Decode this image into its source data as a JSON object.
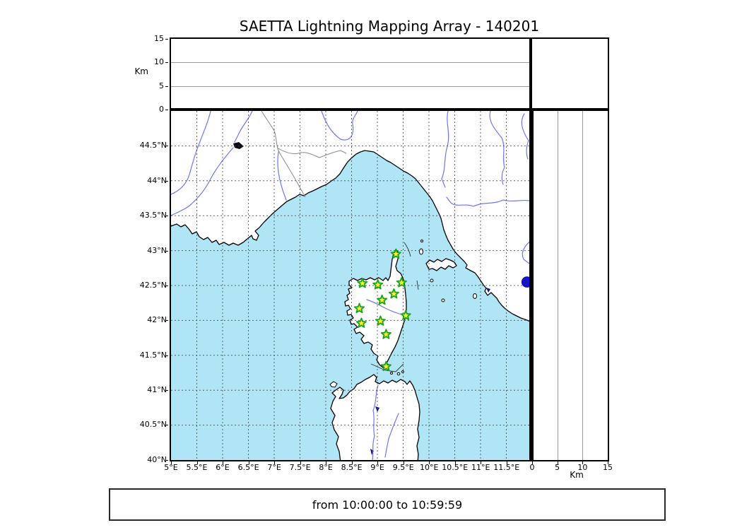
{
  "title": "SAETTA Lightning Mapping Array - 140201",
  "footer": "from 10:00:00 to 10:59:59",
  "axes": {
    "alt_top": {
      "label": "Km",
      "ticks": [
        "15",
        "10",
        "5",
        "0"
      ]
    },
    "alt_right": {
      "label": "Km",
      "ticks": [
        "0",
        "5",
        "10",
        "15"
      ]
    },
    "lat": {
      "ticks": [
        "44.5°N",
        "44°N",
        "43.5°N",
        "43°N",
        "42.5°N",
        "42°N",
        "41.5°N",
        "41°N",
        "40.5°N",
        "40°N"
      ]
    },
    "lon": {
      "ticks": [
        "5°E",
        "5.5°E",
        "6°E",
        "6.5°E",
        "7°E",
        "7.5°E",
        "8°E",
        "8.5°E",
        "9°E",
        "9.5°E",
        "10°E",
        "10.5°E",
        "11°E",
        "11.5°E"
      ]
    }
  },
  "colors": {
    "sea": "#b0e5f6",
    "land": "#ffffff",
    "station_fill": "#f6ee33",
    "station_edge": "#1ca11c",
    "event_dot": "#1515cd",
    "river": "#7277e8",
    "country_border": "#8a8a8a",
    "grid": "#4a4a4a"
  },
  "chart_data": {
    "type": "scatter",
    "title": "SAETTA Lightning Mapping Array - 140201",
    "time_range": "from 10:00:00 to 10:59:59",
    "layout": "LMA 4-panel figure: altitude-vs-longitude strip (top), plan-view map of Corsica/NW Mediterranean (main), altitude-vs-latitude strip (right), empty histogram box (top-right); grid on, dashed, 0.5 deg",
    "map_extent": {
      "lon_deg_E": [
        5,
        12
      ],
      "lat_deg_N": [
        40,
        45
      ]
    },
    "altitude_axis": {
      "label": "Km",
      "range": [
        0,
        15
      ],
      "ticks": [
        0,
        5,
        10,
        15
      ],
      "gridlines_at": [
        5,
        10
      ]
    },
    "grid_interval_deg": 0.5,
    "station_marker": "yellow star with green edge",
    "stations_lonlat": [
      [
        9.36,
        42.95
      ],
      [
        8.71,
        42.53
      ],
      [
        9.01,
        42.51
      ],
      [
        9.47,
        42.54
      ],
      [
        9.32,
        42.38
      ],
      [
        9.09,
        42.29
      ],
      [
        8.65,
        42.17
      ],
      [
        9.55,
        42.07
      ],
      [
        8.69,
        41.96
      ],
      [
        9.06,
        41.99
      ],
      [
        9.17,
        41.8
      ],
      [
        9.17,
        41.34
      ]
    ],
    "event_marker": "blue filled circle, clipped at right map edge",
    "events_lonlat": [
      [
        11.9,
        42.55
      ]
    ],
    "top_panel_points": [],
    "right_panel_points": [],
    "histogram_points": []
  }
}
